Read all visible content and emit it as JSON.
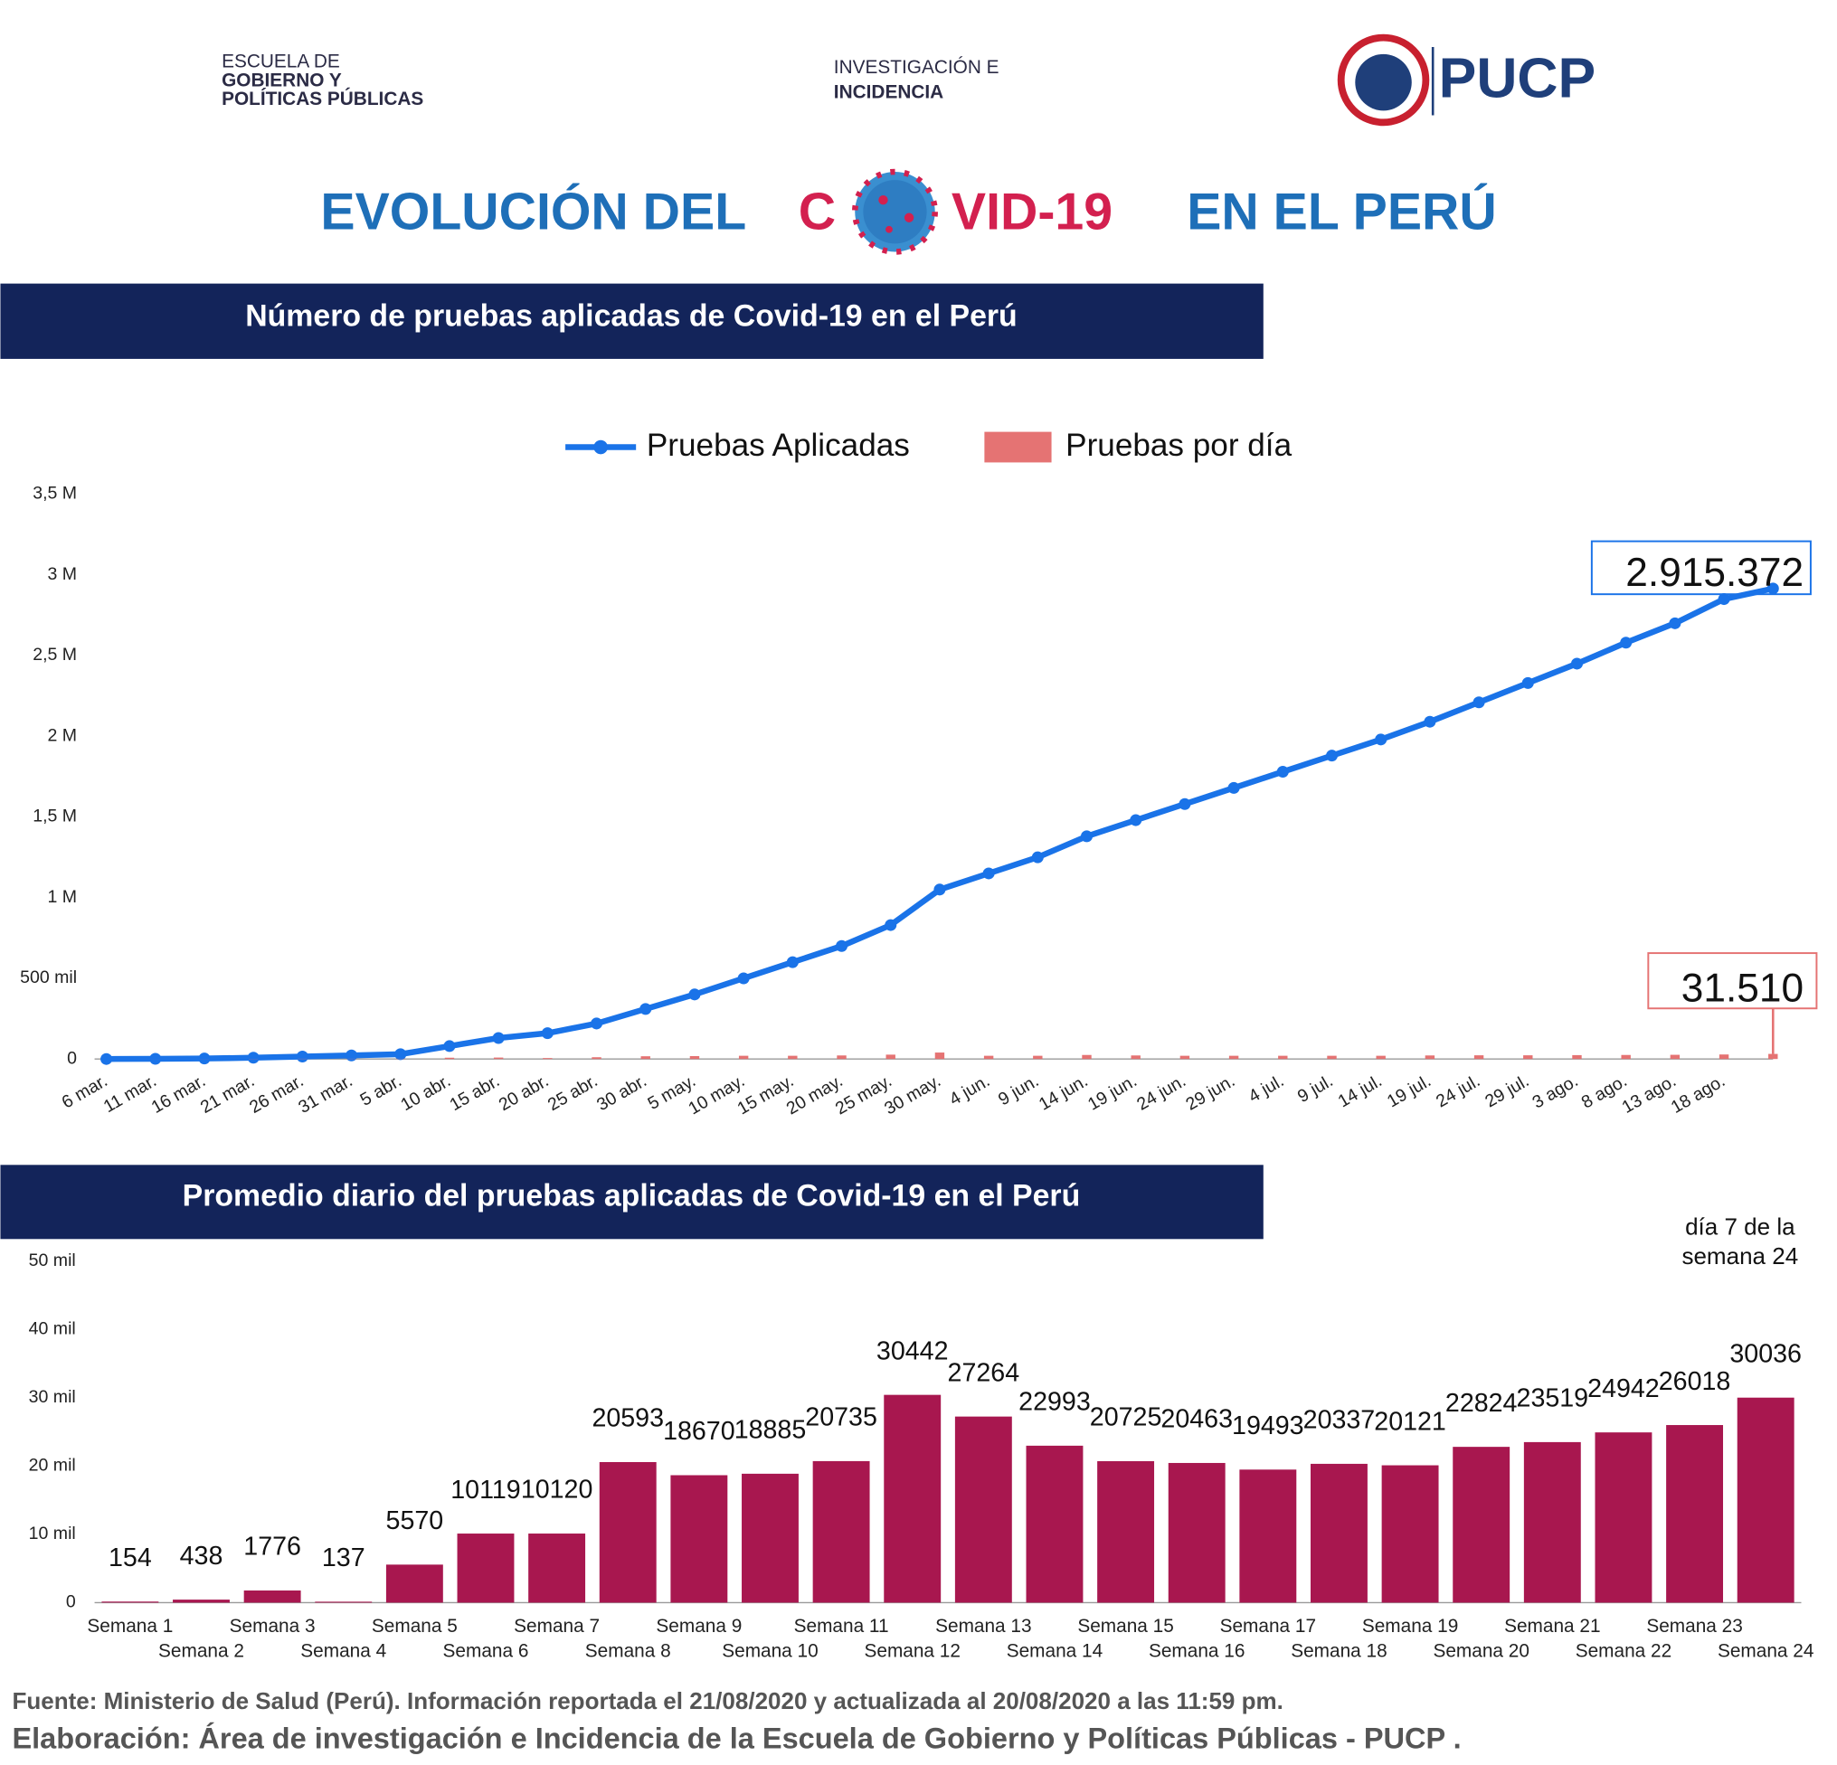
{
  "header": {
    "logo_left": [
      "ESCUELA DE",
      "GOBIERNO Y",
      "POLÍTICAS PÚBLICAS"
    ],
    "logo_center": [
      "INVESTIGACIÓN E",
      "INCIDENCIA"
    ],
    "logo_right": "PUCP",
    "title": [
      "EVOLUCIÓN DEL",
      "C",
      "VID-19",
      "EN EL PERÚ"
    ]
  },
  "chart_data": [
    {
      "type": "line",
      "title": "Número de pruebas aplicadas de Covid-19 en el Perú",
      "categories": [
        "6 mar.",
        "11 mar.",
        "16 mar.",
        "21 mar.",
        "26 mar.",
        "31 mar.",
        "5 abr.",
        "10 abr.",
        "15 abr.",
        "20 abr.",
        "25 abr.",
        "30 abr.",
        "5 may.",
        "10 may.",
        "15 may.",
        "20 may.",
        "25 may.",
        "30 may.",
        "4 jun.",
        "9 jun.",
        "14 jun.",
        "19 jun.",
        "24 jun.",
        "29 jun.",
        "4 jul.",
        "9 jul.",
        "14 jul.",
        "19 jul.",
        "24 jul.",
        "29 jul.",
        "3 ago.",
        "8 ago.",
        "13 ago.",
        "18 ago.",
        null
      ],
      "series": [
        {
          "name": "Pruebas Aplicadas",
          "type": "line",
          "color": "#1a73e8",
          "values": [
            0,
            1000,
            3000,
            8000,
            15000,
            22000,
            30000,
            80000,
            130000,
            160000,
            220000,
            310000,
            400000,
            500000,
            600000,
            700000,
            830000,
            1050000,
            1150000,
            1250000,
            1380000,
            1480000,
            1580000,
            1680000,
            1780000,
            1880000,
            1980000,
            2090000,
            2210000,
            2330000,
            2450000,
            2580000,
            2700000,
            2850000,
            2915372
          ],
          "value_labels": [
            null,
            null,
            null,
            null,
            null,
            null,
            null,
            null,
            null,
            null,
            null,
            null,
            null,
            null,
            null,
            null,
            null,
            null,
            null,
            null,
            null,
            null,
            null,
            null,
            null,
            null,
            null,
            null,
            null,
            null,
            null,
            null,
            null,
            null,
            "2.915.372"
          ]
        },
        {
          "name": "Pruebas por día",
          "type": "bar",
          "color": "#e57373",
          "values": [
            0,
            200,
            500,
            1000,
            1500,
            1500,
            1600,
            8000,
            9000,
            6000,
            11000,
            17000,
            18000,
            20000,
            20000,
            22000,
            27000,
            40000,
            20000,
            20000,
            25000,
            22000,
            20000,
            20000,
            20000,
            20000,
            20000,
            22000,
            23000,
            23000,
            24000,
            25000,
            26000,
            28000,
            31510
          ],
          "value_labels": [
            null,
            null,
            null,
            null,
            null,
            null,
            null,
            null,
            null,
            null,
            null,
            null,
            null,
            null,
            null,
            null,
            null,
            null,
            null,
            null,
            null,
            null,
            null,
            null,
            null,
            null,
            null,
            null,
            null,
            null,
            null,
            null,
            null,
            null,
            "31.510"
          ]
        }
      ],
      "ylim": [
        0,
        3500000
      ],
      "yticks": [
        0,
        {
          "value": 500000,
          "label": "500 mil"
        },
        {
          "value": 1000000,
          "label": "1 M"
        },
        {
          "value": 1500000,
          "label": "1,5 M"
        },
        {
          "value": 2000000,
          "label": "2 M"
        },
        {
          "value": 2500000,
          "label": "2,5 M"
        },
        {
          "value": 3000000,
          "label": "3 M"
        },
        {
          "value": 3500000,
          "label": "3,5 M"
        }
      ],
      "legend": "top"
    },
    {
      "type": "bar",
      "title": "Promedio diario del pruebas  aplicadas de Covid-19 en el Perú",
      "categories": [
        "Semana 1",
        "Semana 2",
        "Semana 3",
        "Semana 4",
        "Semana 5",
        "Semana 6",
        "Semana 7",
        "Semana 8",
        "Semana 9",
        "Semana 10",
        "Semana 11",
        "Semana 12",
        "Semana 13",
        "Semana 14",
        "Semana 15",
        "Semana 16",
        "Semana 17",
        "Semana 18",
        "Semana 19",
        "Semana 20",
        "Semana 21",
        "Semana 22",
        "Semana 23",
        "Semana 24"
      ],
      "values": [
        154,
        438,
        1776,
        137,
        5570,
        10119,
        10120,
        20593,
        18670,
        18885,
        20735,
        30442,
        27264,
        22993,
        20725,
        20463,
        19493,
        20337,
        20121,
        22824,
        23519,
        24942,
        26018,
        30036
      ],
      "color": "#a8174f",
      "ylim": [
        0,
        50000
      ],
      "yticks": [
        0,
        {
          "value": 10000,
          "label": "10 mil"
        },
        {
          "value": 20000,
          "label": "20 mil"
        },
        {
          "value": 30000,
          "label": "30 mil"
        },
        {
          "value": 40000,
          "label": "40 mil"
        },
        {
          "value": 50000,
          "label": "50 mil"
        }
      ],
      "annotation": [
        "día  7 de la",
        "semana 24"
      ]
    }
  ],
  "footer": {
    "source": "Fuente: Ministerio de Salud (Perú). Información reportada el 21/08/2020  y actualizada al 20/08/2020 a las 11:59 pm.",
    "credit": "Elaboración: Área de investigación e Incidencia de la Escuela de Gobierno y Políticas Públicas - PUCP ."
  }
}
